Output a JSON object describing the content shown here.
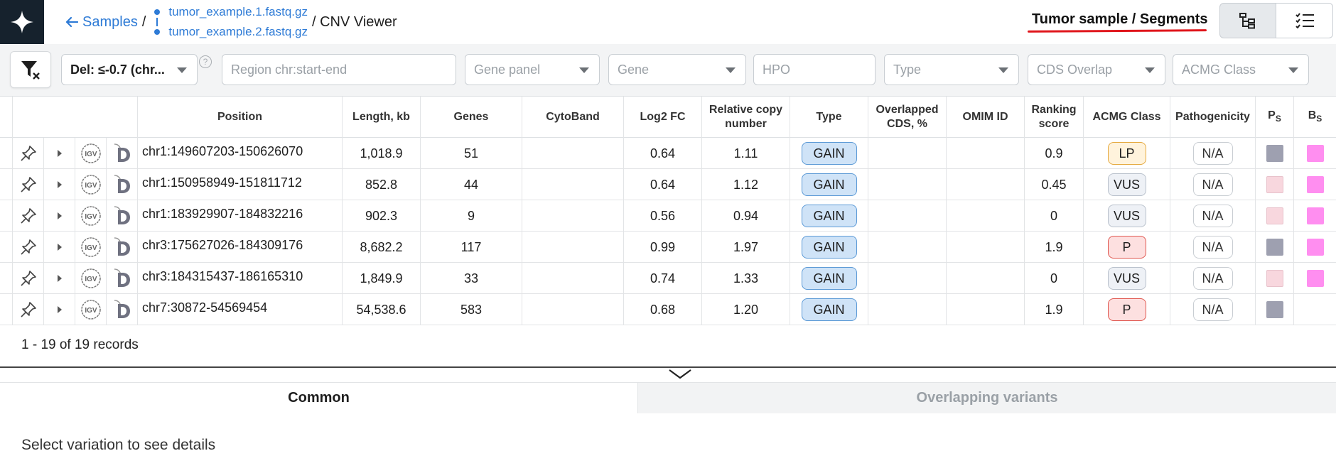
{
  "breadcrumb": {
    "back_label": "Samples",
    "separator": "/",
    "files": [
      "tumor_example.1.fastq.gz",
      "tumor_example.2.fastq.gz"
    ],
    "current": "/ CNV Viewer"
  },
  "view": {
    "title": "Tumor sample / Segments",
    "toggle_tree_icon": "tree-view-icon",
    "toggle_list_icon": "list-view-icon"
  },
  "filters": {
    "deletion_value": "Del: ≤-0.7 (chr...",
    "region_placeholder": "Region chr:start-end",
    "gene_panel_placeholder": "Gene panel",
    "gene_placeholder": "Gene",
    "hpo_placeholder": "HPO",
    "type_placeholder": "Type",
    "cds_overlap_placeholder": "CDS Overlap",
    "acmg_class_placeholder": "ACMG Class",
    "help": "?"
  },
  "table": {
    "columns": {
      "position": "Position",
      "length": "Length, kb",
      "genes": "Genes",
      "cytoband": "CytoBand",
      "log2fc": "Log2 FC",
      "rel_copy": "Relative copy number",
      "type": "Type",
      "overlapped_cds": "Overlapped CDS, %",
      "omim": "OMIM ID",
      "ranking": "Ranking score",
      "acmg": "ACMG Class",
      "pathogenicity": "Pathogenicity",
      "ps": "PS",
      "bs": "BS"
    },
    "rows": [
      {
        "position": "chr1:149607203-150626070",
        "length": "1,018.9",
        "genes": "51",
        "cytoband": "",
        "log2fc": "0.64",
        "rel_copy": "1.11",
        "type": "GAIN",
        "overlapped_cds": "",
        "omim": "",
        "ranking": "0.9",
        "acmg": "LP",
        "pathogenicity": "N/A",
        "ps_color": "#9ea0b0",
        "bs_color": "#ff8ef0"
      },
      {
        "position": "chr1:150958949-151811712",
        "length": "852.8",
        "genes": "44",
        "cytoband": "",
        "log2fc": "0.64",
        "rel_copy": "1.12",
        "type": "GAIN",
        "overlapped_cds": "",
        "omim": "",
        "ranking": "0.45",
        "acmg": "VUS",
        "pathogenicity": "N/A",
        "ps_color": "#f8d7de",
        "bs_color": "#ff8ef0"
      },
      {
        "position": "chr1:183929907-184832216",
        "length": "902.3",
        "genes": "9",
        "cytoband": "",
        "log2fc": "0.56",
        "rel_copy": "0.94",
        "type": "GAIN",
        "overlapped_cds": "",
        "omim": "",
        "ranking": "0",
        "acmg": "VUS",
        "pathogenicity": "N/A",
        "ps_color": "#f8d7de",
        "bs_color": "#ff8ef0"
      },
      {
        "position": "chr3:175627026-184309176",
        "length": "8,682.2",
        "genes": "117",
        "cytoband": "",
        "log2fc": "0.99",
        "rel_copy": "1.97",
        "type": "GAIN",
        "overlapped_cds": "",
        "omim": "",
        "ranking": "1.9",
        "acmg": "P",
        "pathogenicity": "N/A",
        "ps_color": "#9ea0b0",
        "bs_color": "#ff8ef0"
      },
      {
        "position": "chr3:184315437-186165310",
        "length": "1,849.9",
        "genes": "33",
        "cytoband": "",
        "log2fc": "0.74",
        "rel_copy": "1.33",
        "type": "GAIN",
        "overlapped_cds": "",
        "omim": "",
        "ranking": "0",
        "acmg": "VUS",
        "pathogenicity": "N/A",
        "ps_color": "#f8d7de",
        "bs_color": "#ff8ef0"
      },
      {
        "position": "chr7:30872-54569454",
        "length": "54,538.6",
        "genes": "583",
        "cytoband": "",
        "log2fc": "0.68",
        "rel_copy": "1.20",
        "type": "GAIN",
        "overlapped_cds": "",
        "omim": "",
        "ranking": "1.9",
        "acmg": "P",
        "pathogenicity": "N/A",
        "ps_color": "#9ea0b0",
        "bs_color": ""
      }
    ]
  },
  "acmg_styles": {
    "LP": {
      "bg": "#fff3dc",
      "border": "#e5a93e"
    },
    "VUS": {
      "bg": "#eef1f6",
      "border": "#b9c1cc"
    },
    "P": {
      "bg": "#fde0e0",
      "border": "#e0574f"
    }
  },
  "records_text": "1 - 19 of 19 records",
  "details": {
    "tab_common": "Common",
    "tab_overlapping": "Overlapping variants",
    "empty_message": "Select variation to see details"
  }
}
